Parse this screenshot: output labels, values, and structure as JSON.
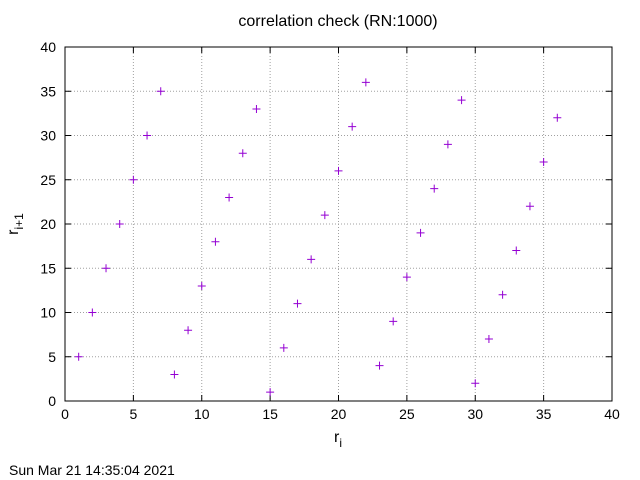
{
  "chart_data": {
    "type": "scatter",
    "title": "correlation check (RN:1000)",
    "xlabel_main": "r",
    "xlabel_sub": "i",
    "ylabel_main": "r",
    "ylabel_sub": "i+1",
    "xlim": [
      0,
      40
    ],
    "ylim": [
      0,
      40
    ],
    "x_ticks": [
      0,
      5,
      10,
      15,
      20,
      25,
      30,
      35,
      40
    ],
    "y_ticks": [
      0,
      5,
      10,
      15,
      20,
      25,
      30,
      35,
      40
    ],
    "grid": true,
    "marker": "plus",
    "point_color": "#9400d3",
    "points": [
      {
        "x": 1,
        "y": 5
      },
      {
        "x": 2,
        "y": 10
      },
      {
        "x": 3,
        "y": 15
      },
      {
        "x": 4,
        "y": 20
      },
      {
        "x": 5,
        "y": 25
      },
      {
        "x": 6,
        "y": 30
      },
      {
        "x": 7,
        "y": 35
      },
      {
        "x": 8,
        "y": 3
      },
      {
        "x": 9,
        "y": 8
      },
      {
        "x": 10,
        "y": 13
      },
      {
        "x": 11,
        "y": 18
      },
      {
        "x": 12,
        "y": 23
      },
      {
        "x": 13,
        "y": 28
      },
      {
        "x": 14,
        "y": 33
      },
      {
        "x": 15,
        "y": 1
      },
      {
        "x": 16,
        "y": 6
      },
      {
        "x": 17,
        "y": 11
      },
      {
        "x": 18,
        "y": 16
      },
      {
        "x": 19,
        "y": 21
      },
      {
        "x": 20,
        "y": 26
      },
      {
        "x": 21,
        "y": 31
      },
      {
        "x": 22,
        "y": 36
      },
      {
        "x": 23,
        "y": 4
      },
      {
        "x": 24,
        "y": 9
      },
      {
        "x": 25,
        "y": 14
      },
      {
        "x": 26,
        "y": 19
      },
      {
        "x": 27,
        "y": 24
      },
      {
        "x": 28,
        "y": 29
      },
      {
        "x": 29,
        "y": 34
      },
      {
        "x": 30,
        "y": 2
      },
      {
        "x": 31,
        "y": 7
      },
      {
        "x": 32,
        "y": 12
      },
      {
        "x": 33,
        "y": 17
      },
      {
        "x": 34,
        "y": 22
      },
      {
        "x": 35,
        "y": 27
      },
      {
        "x": 36,
        "y": 32
      }
    ]
  },
  "timestamp": "Sun Mar 21 14:35:04 2021"
}
